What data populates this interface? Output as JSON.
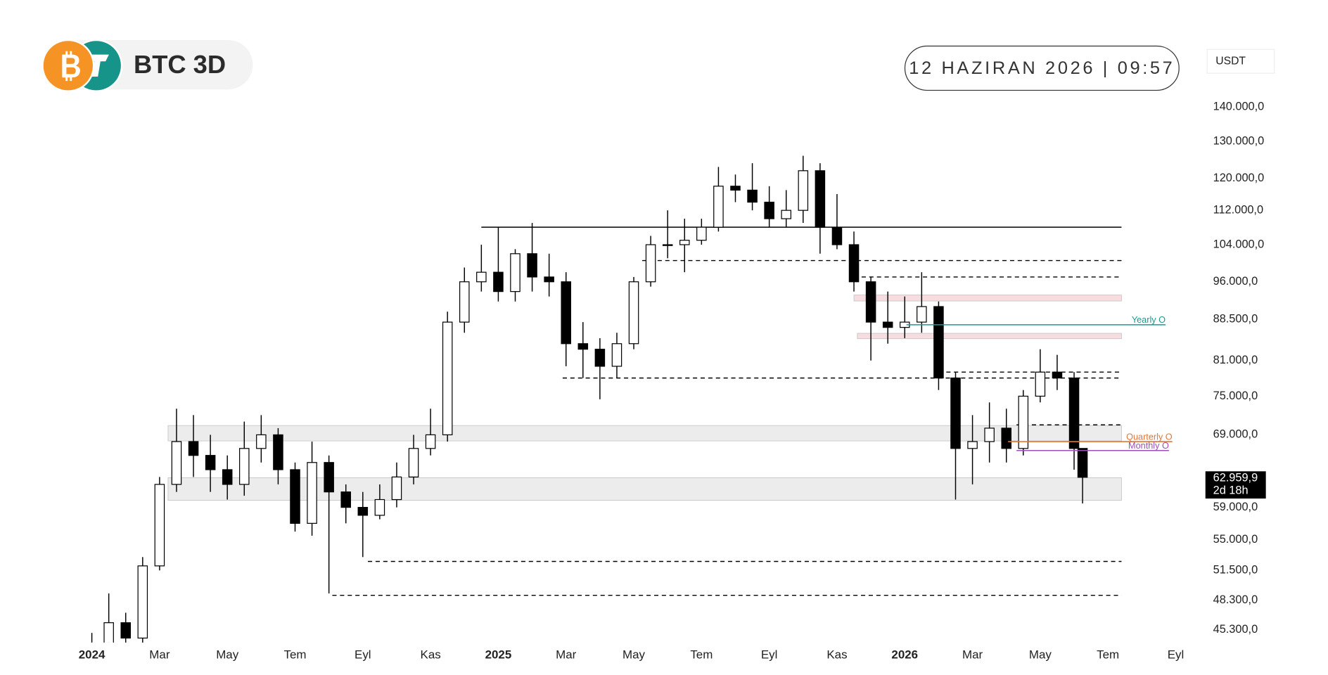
{
  "chart_data": {
    "type": "candlestick",
    "title": "BTC 3D",
    "date_label": "12 HAZIRAN 2026 | 09:57",
    "currency": "USDT",
    "log_scale": true,
    "grid": false,
    "up_color": "#ffffff",
    "down_color": "#000000",
    "wick_color": "#000000",
    "xlim": [
      -0.5,
      32.5
    ],
    "xticks": [
      {
        "value": 0,
        "label": "2024"
      },
      {
        "value": 2,
        "label": "Mar"
      },
      {
        "value": 4,
        "label": "May"
      },
      {
        "value": 6,
        "label": "Tem"
      },
      {
        "value": 8,
        "label": "Eyl"
      },
      {
        "value": 10,
        "label": "Kas"
      },
      {
        "value": 12,
        "label": "2025"
      },
      {
        "value": 14,
        "label": "Mar"
      },
      {
        "value": 16,
        "label": "May"
      },
      {
        "value": 18,
        "label": "Tem"
      },
      {
        "value": 20,
        "label": "Eyl"
      },
      {
        "value": 22,
        "label": "Kas"
      },
      {
        "value": 24,
        "label": "2026"
      },
      {
        "value": 26,
        "label": "Mar"
      },
      {
        "value": 28,
        "label": "May"
      },
      {
        "value": 30,
        "label": "Tem"
      },
      {
        "value": 32,
        "label": "Eyl"
      }
    ],
    "ylim": [
      44070,
      150000
    ],
    "yticks": [
      {
        "value": 45300,
        "label": "45.300,0"
      },
      {
        "value": 48300,
        "label": "48.300,0"
      },
      {
        "value": 51500,
        "label": "51.500,0"
      },
      {
        "value": 55000,
        "label": "55.000,0"
      },
      {
        "value": 59000,
        "label": "59.000,0"
      },
      {
        "value": 69000,
        "label": "69.000,0"
      },
      {
        "value": 75000,
        "label": "75.000,0"
      },
      {
        "value": 81000,
        "label": "81.000,0"
      },
      {
        "value": 88500,
        "label": "88.500,0"
      },
      {
        "value": 96000,
        "label": "96.000,0"
      },
      {
        "value": 104000,
        "label": "104.000,0"
      },
      {
        "value": 112000,
        "label": "112.000,0"
      },
      {
        "value": 120000,
        "label": "120.000,0"
      },
      {
        "value": 130000,
        "label": "130.000,0"
      },
      {
        "value": 140000,
        "label": "140.000,0"
      }
    ],
    "candles": {
      "x": [
        0,
        0.5,
        1,
        1.5,
        2,
        2.5,
        3,
        3.5,
        4,
        4.5,
        5,
        5.5,
        6,
        6.5,
        7,
        7.5,
        8,
        8.5,
        9,
        9.5,
        10,
        10.5,
        11,
        11.5,
        12,
        12.5,
        13,
        13.5,
        14,
        14.5,
        15,
        15.5,
        16,
        16.5,
        17,
        17.5,
        18,
        18.5,
        19,
        19.5,
        20,
        20.5,
        21,
        21.5,
        22,
        22.5,
        23,
        23.5,
        24,
        24.5,
        25,
        25.5,
        26,
        26.5,
        27,
        27.5,
        28,
        28.5,
        29,
        29.25
      ],
      "open": [
        42000,
        44000,
        46000,
        44500,
        52000,
        62000,
        68000,
        66000,
        64000,
        62000,
        67000,
        69000,
        64000,
        57000,
        65000,
        61000,
        59000,
        58000,
        60000,
        63000,
        67000,
        69000,
        88000,
        96000,
        98000,
        94000,
        102000,
        97000,
        96000,
        84000,
        83000,
        80000,
        84000,
        96000,
        104000,
        104000,
        105000,
        108000,
        118000,
        117000,
        114000,
        110000,
        112000,
        122000,
        108000,
        104000,
        96000,
        88000,
        87000,
        88000,
        91000,
        78000,
        67000,
        68000,
        70000,
        67000,
        75000,
        79000,
        78000,
        67000
      ],
      "high": [
        45000,
        49000,
        47000,
        53000,
        63000,
        73000,
        72000,
        69000,
        66000,
        71000,
        72000,
        70000,
        65000,
        68000,
        66000,
        62000,
        61000,
        62000,
        65000,
        69000,
        73000,
        90000,
        99000,
        104000,
        108000,
        103000,
        109000,
        102000,
        98000,
        88000,
        85000,
        86000,
        97000,
        106000,
        112000,
        110000,
        110000,
        123000,
        121000,
        124000,
        118000,
        117000,
        126000,
        124000,
        116000,
        107000,
        97000,
        94000,
        93000,
        98000,
        92000,
        79000,
        72000,
        74000,
        73000,
        76000,
        83000,
        82000,
        79000,
        65000
      ],
      "low": [
        41000,
        43000,
        43500,
        44000,
        51500,
        61000,
        63000,
        61000,
        60000,
        60500,
        65000,
        62000,
        56000,
        55500,
        49000,
        57000,
        53000,
        57500,
        59000,
        62000,
        66000,
        68000,
        86000,
        94000,
        92000,
        92000,
        94000,
        93000,
        80000,
        78000,
        74500,
        78000,
        83000,
        95000,
        101000,
        98000,
        104000,
        107000,
        114000,
        112000,
        108000,
        108000,
        109000,
        102000,
        103000,
        94000,
        81000,
        84000,
        85000,
        86000,
        76000,
        60000,
        62000,
        65000,
        65000,
        66000,
        74000,
        76000,
        64000,
        59500
      ],
      "close": [
        44000,
        46000,
        44500,
        52000,
        62000,
        68000,
        66000,
        64000,
        62000,
        67000,
        69000,
        64000,
        57000,
        65000,
        61000,
        59000,
        58000,
        60000,
        63000,
        67000,
        69000,
        88000,
        96000,
        98000,
        94000,
        102000,
        97000,
        96000,
        84000,
        83000,
        80000,
        84000,
        96000,
        104000,
        104000,
        105000,
        108000,
        118000,
        117000,
        114000,
        110000,
        112000,
        122000,
        108000,
        104000,
        96000,
        88000,
        87000,
        88000,
        91000,
        78000,
        67000,
        68000,
        70000,
        67000,
        75000,
        79000,
        78000,
        67000,
        62959.9
      ]
    },
    "zones": [
      {
        "low": 68100,
        "high": 70400,
        "from": 2.25,
        "to": 30.4,
        "color": "#ececec"
      },
      {
        "low": 59900,
        "high": 62900,
        "from": 2.25,
        "to": 30.4,
        "color": "#ececec"
      },
      {
        "low": 92100,
        "high": 93300,
        "from": 22.5,
        "to": 30.4,
        "color": "#f7dde0"
      },
      {
        "low": 84900,
        "high": 85900,
        "from": 22.6,
        "to": 30.4,
        "color": "#f7dde0"
      }
    ],
    "levels": [
      {
        "price": 108000,
        "from": 11.5,
        "to": 30.4,
        "style": "solid",
        "color": "#000000"
      },
      {
        "price": 100500,
        "from": 16.25,
        "to": 30.4,
        "style": "dashed",
        "color": "#000000"
      },
      {
        "price": 97000,
        "from": 22.5,
        "to": 30.4,
        "style": "dashed",
        "color": "#000000"
      },
      {
        "price": 79000,
        "from": 25,
        "to": 30.4,
        "style": "dashed",
        "color": "#000000"
      },
      {
        "price": 78000,
        "from": 13.9,
        "to": 30.4,
        "style": "dashed",
        "color": "#000000"
      },
      {
        "price": 70500,
        "from": 27.3,
        "to": 30.4,
        "style": "dashed",
        "color": "#000000"
      },
      {
        "price": 52500,
        "from": 8.15,
        "to": 30.4,
        "style": "dashed",
        "color": "#000000"
      },
      {
        "price": 48800,
        "from": 7.1,
        "to": 30.4,
        "style": "dashed",
        "color": "#000000"
      }
    ],
    "opens": [
      {
        "name": "Yearly O",
        "price": 87500,
        "from": 24.05,
        "to": 31.7,
        "color": "#1f9a8c"
      },
      {
        "name": "Quarterly O",
        "price": 68000,
        "from": 27.05,
        "to": 31.9,
        "color": "#e0773a"
      },
      {
        "name": "Monthly O",
        "price": 66700,
        "from": 27.3,
        "to": 31.8,
        "color": "#9b4fb8"
      }
    ],
    "last_price": {
      "value": 62959.9,
      "label": "62.959,9"
    },
    "countdown": "2d 18h"
  }
}
